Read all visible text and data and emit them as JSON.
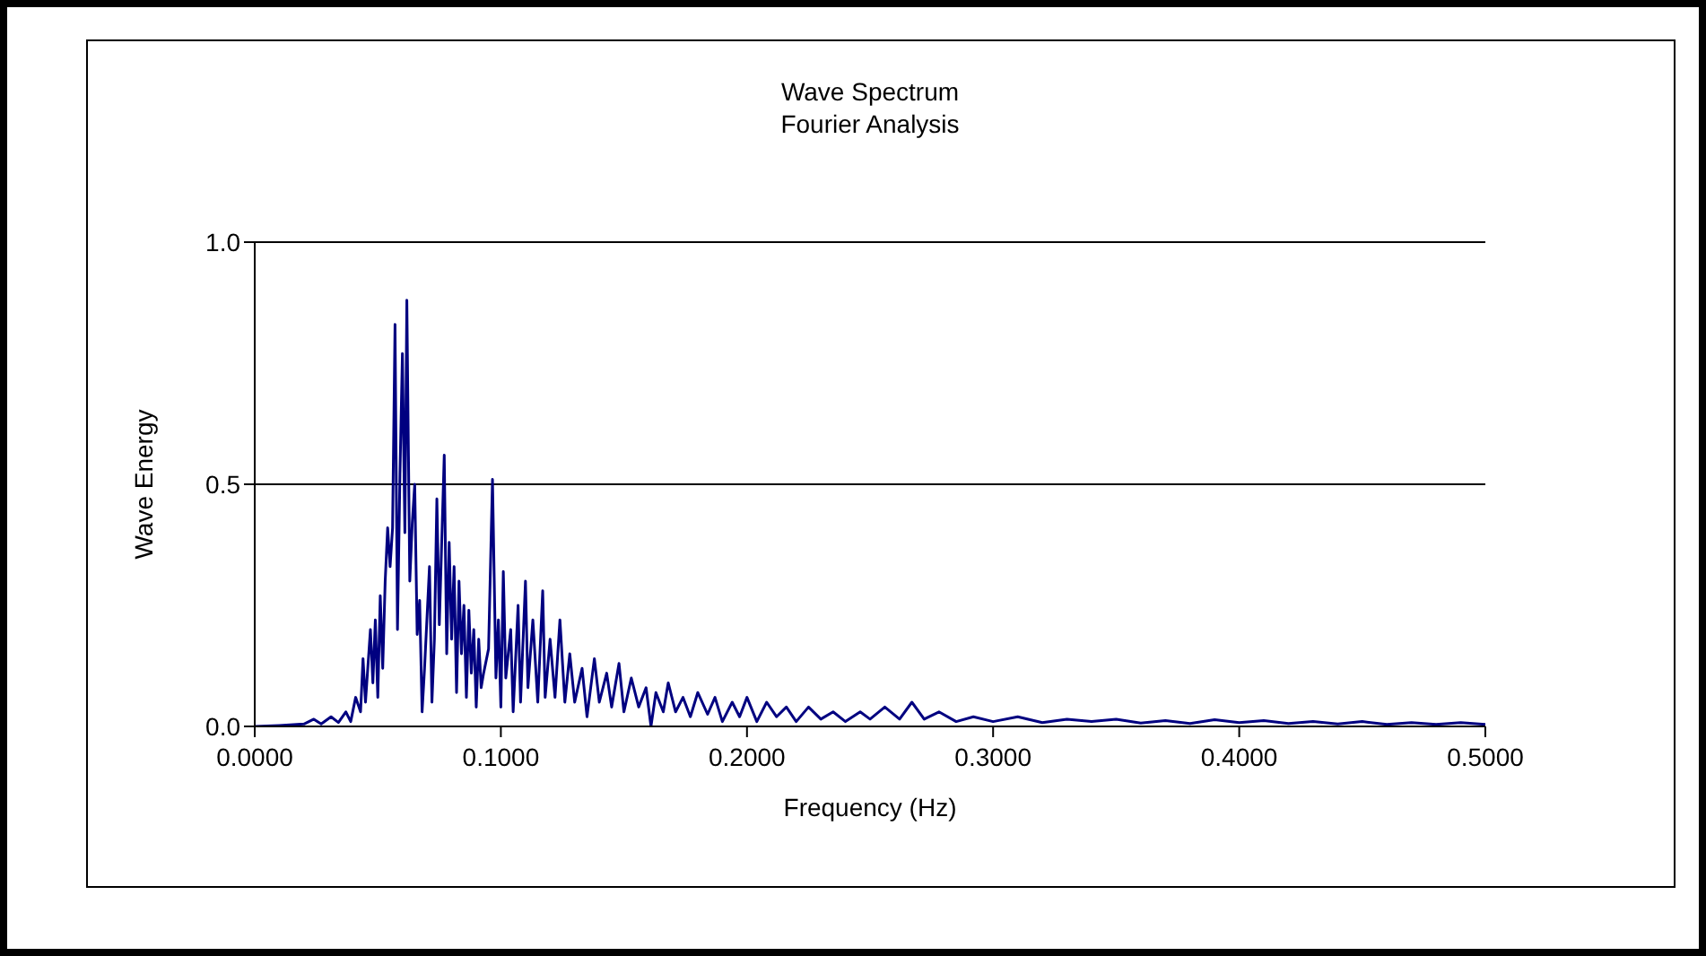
{
  "chart_data": {
    "type": "line",
    "title": "Wave Spectrum",
    "subtitle": "Fourier Analysis",
    "xlabel": "Frequency (Hz)",
    "ylabel": "Wave Energy",
    "xlim": [
      0,
      0.5
    ],
    "xticks": [
      {
        "value": 0,
        "label": "0.0000"
      },
      {
        "value": 0.1,
        "label": "0.1000"
      },
      {
        "value": 0.2,
        "label": "0.2000"
      },
      {
        "value": 0.3,
        "label": "0.3000"
      },
      {
        "value": 0.4,
        "label": "0.4000"
      },
      {
        "value": 0.5,
        "label": "0.5000"
      }
    ],
    "ylim": [
      0,
      1
    ],
    "yticks": [
      {
        "value": 0,
        "label": "0.0"
      },
      {
        "value": 0.5,
        "label": "0.5"
      },
      {
        "value": 1,
        "label": "1.0"
      }
    ],
    "grid": "y",
    "marker": "none",
    "line_style": "solid",
    "series": [
      {
        "color": "#000080",
        "x": [
          0,
          0.01,
          0.02,
          0.024,
          0.027,
          0.031,
          0.034,
          0.037,
          0.039,
          0.041,
          0.043,
          0.044,
          0.045,
          0.047,
          0.048,
          0.049,
          0.05,
          0.051,
          0.052,
          0.053,
          0.054,
          0.055,
          0.056,
          0.057,
          0.058,
          0.059,
          0.06,
          0.061,
          0.0618,
          0.063,
          0.064,
          0.065,
          0.066,
          0.067,
          0.068,
          0.069,
          0.071,
          0.072,
          0.073,
          0.074,
          0.075,
          0.077,
          0.078,
          0.079,
          0.08,
          0.081,
          0.082,
          0.083,
          0.084,
          0.085,
          0.086,
          0.087,
          0.088,
          0.089,
          0.09,
          0.091,
          0.092,
          0.093,
          0.095,
          0.0966,
          0.098,
          0.099,
          0.1,
          0.101,
          0.102,
          0.104,
          0.105,
          0.107,
          0.108,
          0.11,
          0.111,
          0.113,
          0.115,
          0.117,
          0.118,
          0.12,
          0.122,
          0.124,
          0.126,
          0.128,
          0.13,
          0.133,
          0.135,
          0.138,
          0.14,
          0.143,
          0.145,
          0.148,
          0.15,
          0.153,
          0.156,
          0.159,
          0.161,
          0.163,
          0.166,
          0.168,
          0.171,
          0.174,
          0.177,
          0.18,
          0.184,
          0.187,
          0.19,
          0.194,
          0.197,
          0.2,
          0.204,
          0.208,
          0.212,
          0.216,
          0.22,
          0.225,
          0.23,
          0.235,
          0.24,
          0.246,
          0.25,
          0.256,
          0.262,
          0.267,
          0.272,
          0.278,
          0.285,
          0.292,
          0.3,
          0.31,
          0.32,
          0.33,
          0.34,
          0.35,
          0.36,
          0.37,
          0.38,
          0.39,
          0.4,
          0.41,
          0.42,
          0.43,
          0.44,
          0.45,
          0.46,
          0.47,
          0.48,
          0.49,
          0.5
        ],
        "values": [
          0,
          0.002,
          0.005,
          0.015,
          0.005,
          0.02,
          0.008,
          0.03,
          0.01,
          0.06,
          0.03,
          0.14,
          0.05,
          0.2,
          0.09,
          0.22,
          0.06,
          0.27,
          0.12,
          0.3,
          0.41,
          0.33,
          0.41,
          0.83,
          0.2,
          0.52,
          0.77,
          0.4,
          0.88,
          0.3,
          0.42,
          0.5,
          0.19,
          0.26,
          0.03,
          0.12,
          0.33,
          0.05,
          0.18,
          0.47,
          0.21,
          0.56,
          0.15,
          0.38,
          0.18,
          0.33,
          0.07,
          0.3,
          0.15,
          0.25,
          0.06,
          0.24,
          0.11,
          0.2,
          0.04,
          0.18,
          0.08,
          0.11,
          0.16,
          0.51,
          0.1,
          0.22,
          0.04,
          0.32,
          0.1,
          0.2,
          0.03,
          0.25,
          0.05,
          0.3,
          0.08,
          0.22,
          0.05,
          0.28,
          0.06,
          0.18,
          0.06,
          0.22,
          0.05,
          0.15,
          0.05,
          0.12,
          0.02,
          0.14,
          0.05,
          0.11,
          0.04,
          0.13,
          0.03,
          0.1,
          0.04,
          0.08,
          0,
          0.07,
          0.03,
          0.09,
          0.03,
          0.06,
          0.02,
          0.07,
          0.025,
          0.06,
          0.01,
          0.05,
          0.02,
          0.06,
          0.01,
          0.05,
          0.02,
          0.04,
          0.01,
          0.04,
          0.015,
          0.03,
          0.01,
          0.03,
          0.015,
          0.04,
          0.015,
          0.05,
          0.015,
          0.03,
          0.01,
          0.02,
          0.01,
          0.02,
          0.008,
          0.015,
          0.01,
          0.015,
          0.007,
          0.012,
          0.006,
          0.014,
          0.008,
          0.012,
          0.006,
          0.01,
          0.005,
          0.01,
          0.004,
          0.008,
          0.004,
          0.008,
          0.004
        ]
      }
    ]
  }
}
